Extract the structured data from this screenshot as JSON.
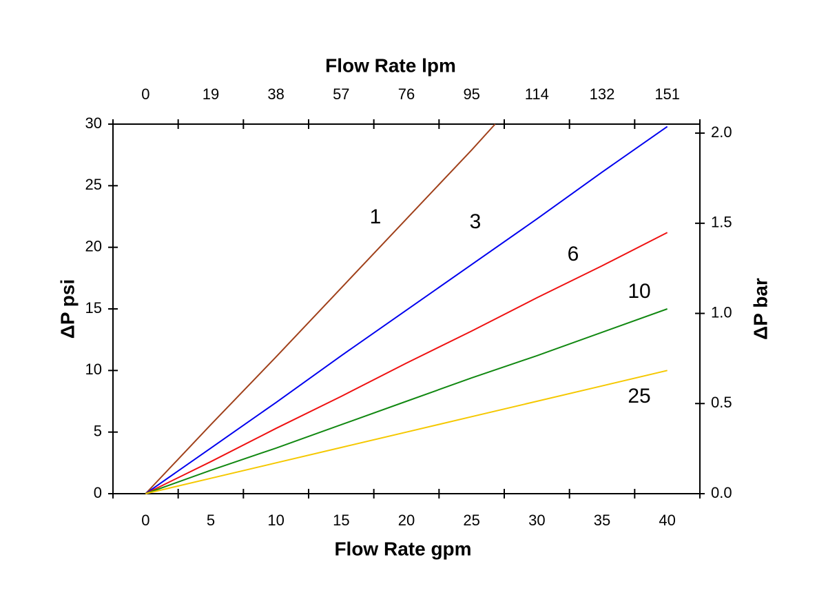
{
  "chart_data": {
    "type": "line",
    "xlabel": "Flow Rate gpm",
    "x2label": "Flow Rate lpm",
    "ylabel": "ΔP psi",
    "y2label": "ΔP bar",
    "xlim": [
      -2.5,
      42.5
    ],
    "xticks": [
      0,
      5,
      10,
      15,
      20,
      25,
      30,
      35,
      40
    ],
    "xtick_marks": [
      -2.5,
      2.5,
      7.5,
      12.5,
      17.5,
      22.5,
      27.5,
      32.5,
      37.5,
      42.5
    ],
    "x2lim": [
      -9.46,
      160.88
    ],
    "x2ticks": [
      0,
      {
        "value": 18.93,
        "label": "19"
      },
      {
        "value": 37.85,
        "label": "38"
      },
      {
        "value": 56.78,
        "label": "57"
      },
      {
        "value": 75.71,
        "label": "76"
      },
      {
        "value": 94.64,
        "label": "95"
      },
      {
        "value": 113.56,
        "label": "114"
      },
      {
        "value": 132.49,
        "label": "132"
      },
      {
        "value": 151.42,
        "label": "151"
      }
    ],
    "ylim": [
      0,
      30
    ],
    "yticks": [
      0,
      5,
      10,
      15,
      20,
      25,
      30
    ],
    "y2lim": [
      0,
      2.05
    ],
    "y2ticks": [
      {
        "value": 0,
        "label": "0.0"
      },
      {
        "value": 0.5,
        "label": "0.5"
      },
      {
        "value": 1,
        "label": "1.0"
      },
      {
        "value": 1.5,
        "label": "1.5"
      },
      {
        "value": 2,
        "label": "2.0"
      }
    ],
    "series": [
      {
        "name": "1",
        "color": "#a0401a",
        "x": [
          0,
          5,
          10,
          15,
          20,
          25,
          26.8
        ],
        "values": [
          0,
          5.6,
          11.1,
          16.7,
          22.3,
          27.9,
          30
        ]
      },
      {
        "name": "3",
        "color": "#0000ee",
        "x": [
          0,
          5,
          10,
          15,
          20,
          25,
          30,
          35,
          40
        ],
        "values": [
          0,
          3.7,
          7.4,
          11.2,
          14.9,
          18.6,
          22.3,
          26.1,
          29.8
        ]
      },
      {
        "name": "6",
        "color": "#ee1111",
        "x": [
          0,
          5,
          10,
          15,
          20,
          25,
          30,
          35,
          40
        ],
        "values": [
          0,
          2.6,
          5.3,
          7.9,
          10.6,
          13.2,
          15.9,
          18.5,
          21.2
        ]
      },
      {
        "name": "10",
        "color": "#118811",
        "x": [
          0,
          5,
          10,
          15,
          20,
          25,
          30,
          35,
          40
        ],
        "values": [
          0,
          1.9,
          3.7,
          5.6,
          7.5,
          9.4,
          11.2,
          13.1,
          15.0
        ]
      },
      {
        "name": "25",
        "color": "#f5c800",
        "x": [
          0,
          5,
          10,
          15,
          20,
          25,
          30,
          35,
          40
        ],
        "values": [
          0,
          1.25,
          2.5,
          3.75,
          5,
          6.25,
          7.5,
          8.75,
          10
        ]
      }
    ]
  }
}
